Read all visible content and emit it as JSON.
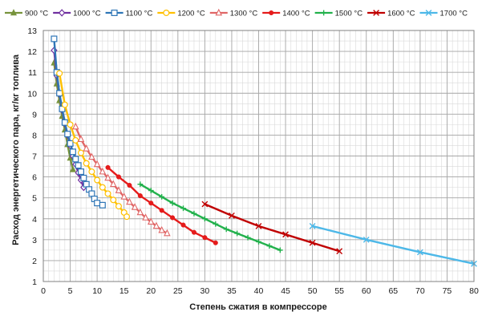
{
  "chart_data": {
    "type": "line",
    "title": "",
    "xlabel": "Степень сжатия в компрессоре",
    "ylabel": "Расход энергетического пара, кг/кг топлива",
    "xlim": [
      0,
      80
    ],
    "ylim": [
      1,
      13
    ],
    "x_ticks": [
      0,
      5,
      10,
      15,
      20,
      25,
      30,
      35,
      40,
      45,
      50,
      55,
      60,
      65,
      70,
      75,
      80
    ],
    "y_ticks": [
      1,
      2,
      3,
      4,
      5,
      6,
      7,
      8,
      9,
      10,
      11,
      12,
      13
    ],
    "x_minor_step": 1,
    "y_minor_step": 0.5,
    "grid": true,
    "legend_position": "top",
    "series": [
      {
        "name": "900 °C",
        "color": "#77933c",
        "marker": "triangle",
        "x": [
          2,
          2.5,
          3,
          3.5,
          4,
          4.5,
          5,
          5.5
        ],
        "y": [
          11.45,
          10.45,
          9.65,
          8.9,
          8.25,
          7.55,
          6.9,
          6.35
        ]
      },
      {
        "name": "1000 °C",
        "color": "#7030a0",
        "marker": "diamond",
        "x": [
          2,
          2.5,
          3,
          3.5,
          4,
          4.5,
          5,
          5.5,
          6,
          6.5,
          7,
          7.5
        ],
        "y": [
          12.05,
          10.85,
          9.95,
          9.2,
          8.55,
          8.0,
          7.5,
          7.0,
          6.6,
          6.2,
          5.85,
          5.5
        ]
      },
      {
        "name": "1100 °C",
        "color": "#2e75b6",
        "marker": "square",
        "x": [
          2,
          2.5,
          3,
          3.5,
          4,
          4.5,
          5,
          5.5,
          6,
          6.5,
          7,
          7.5,
          8,
          8.5,
          9,
          9.5,
          10,
          11
        ],
        "y": [
          12.6,
          11.0,
          10.0,
          9.25,
          8.6,
          8.05,
          7.6,
          7.2,
          6.85,
          6.55,
          6.25,
          5.95,
          5.65,
          5.4,
          5.2,
          4.95,
          4.75,
          4.65
        ]
      },
      {
        "name": "1200 °C",
        "color": "#ffc000",
        "marker": "circle",
        "x": [
          3,
          4,
          5,
          6,
          7,
          8,
          9,
          10,
          11,
          12,
          13,
          14,
          15,
          15.5
        ],
        "y": [
          10.95,
          9.45,
          8.5,
          7.75,
          7.15,
          6.65,
          6.25,
          5.85,
          5.5,
          5.2,
          4.9,
          4.6,
          4.3,
          4.1
        ]
      },
      {
        "name": "1300 °C",
        "color": "#e06666",
        "marker": "triangle-open",
        "x": [
          6,
          7,
          8,
          9,
          10,
          11,
          12,
          13,
          14,
          15,
          16,
          17,
          18,
          19,
          20,
          21,
          22,
          23
        ],
        "y": [
          8.4,
          7.8,
          7.35,
          6.95,
          6.6,
          6.25,
          5.95,
          5.65,
          5.35,
          5.05,
          4.8,
          4.55,
          4.3,
          4.05,
          3.85,
          3.65,
          3.45,
          3.3
        ]
      },
      {
        "name": "1400 °C",
        "color": "#e51b1b",
        "marker": "dot",
        "x": [
          12,
          14,
          16,
          18,
          20,
          22,
          24,
          26,
          28,
          30,
          32
        ],
        "y": [
          6.45,
          6.0,
          5.6,
          5.1,
          4.75,
          4.4,
          4.05,
          3.7,
          3.35,
          3.1,
          2.85
        ]
      },
      {
        "name": "1500 °C",
        "color": "#22b14c",
        "marker": "plus",
        "x": [
          18,
          20,
          22,
          24,
          26,
          28,
          30,
          32,
          34,
          36,
          38,
          40,
          42,
          44
        ],
        "y": [
          5.65,
          5.35,
          5.05,
          4.75,
          4.5,
          4.25,
          4.0,
          3.75,
          3.5,
          3.3,
          3.1,
          2.9,
          2.7,
          2.5
        ]
      },
      {
        "name": "1600 °C",
        "color": "#c00000",
        "marker": "x",
        "x": [
          30,
          35,
          40,
          45,
          50,
          55
        ],
        "y": [
          4.7,
          4.15,
          3.65,
          3.25,
          2.85,
          2.45
        ]
      },
      {
        "name": "1700 °C",
        "color": "#4db8e8",
        "marker": "x",
        "x": [
          50,
          60,
          70,
          80
        ],
        "y": [
          3.65,
          3.0,
          2.4,
          1.85
        ]
      }
    ]
  }
}
